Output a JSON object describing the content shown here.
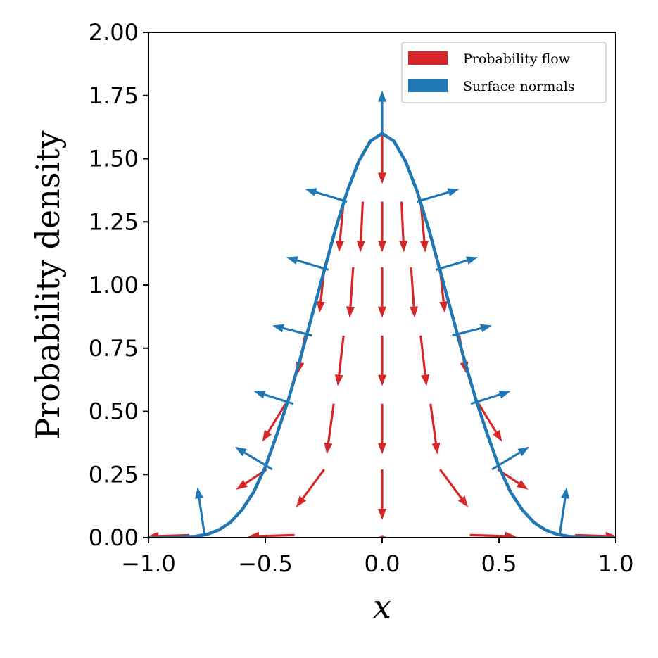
{
  "chart_data": {
    "type": "line",
    "title": "",
    "xlabel": "x",
    "ylabel": "Probability density",
    "xlim": [
      -1.0,
      1.0
    ],
    "ylim": [
      0.0,
      2.0
    ],
    "x_ticks": [
      "−1.0",
      "−0.5",
      "0.0",
      "0.5",
      "1.0"
    ],
    "x_tick_values": [
      -1.0,
      -0.5,
      0.0,
      0.5,
      1.0
    ],
    "y_ticks": [
      "0.00",
      "0.25",
      "0.50",
      "0.75",
      "1.00",
      "1.25",
      "1.50",
      "1.75",
      "2.00"
    ],
    "y_tick_values": [
      0.0,
      0.25,
      0.5,
      0.75,
      1.0,
      1.25,
      1.5,
      1.75,
      2.0
    ],
    "grid": false,
    "legend_position": "top-right",
    "legend": [
      {
        "label": "Probability flow",
        "color": "#d62728"
      },
      {
        "label": "Surface normals",
        "color": "#1f77b4"
      }
    ],
    "curve": {
      "color": "#1f77b4",
      "description_points": [
        [
          -1.0,
          0.0
        ],
        [
          -0.9,
          0.0
        ],
        [
          -0.8,
          0.005
        ],
        [
          -0.75,
          0.013
        ],
        [
          -0.7,
          0.03
        ],
        [
          -0.65,
          0.06
        ],
        [
          -0.6,
          0.11
        ],
        [
          -0.55,
          0.18
        ],
        [
          -0.5,
          0.28
        ],
        [
          -0.45,
          0.41
        ],
        [
          -0.4,
          0.55
        ],
        [
          -0.35,
          0.71
        ],
        [
          -0.3,
          0.88
        ],
        [
          -0.25,
          1.05
        ],
        [
          -0.2,
          1.22
        ],
        [
          -0.15,
          1.37
        ],
        [
          -0.1,
          1.49
        ],
        [
          -0.05,
          1.57
        ],
        [
          0.0,
          1.6
        ],
        [
          0.05,
          1.57
        ],
        [
          0.1,
          1.49
        ],
        [
          0.15,
          1.37
        ],
        [
          0.2,
          1.22
        ],
        [
          0.25,
          1.05
        ],
        [
          0.3,
          0.88
        ],
        [
          0.35,
          0.71
        ],
        [
          0.4,
          0.55
        ],
        [
          0.45,
          0.41
        ],
        [
          0.5,
          0.28
        ],
        [
          0.55,
          0.18
        ],
        [
          0.6,
          0.11
        ],
        [
          0.65,
          0.06
        ],
        [
          0.7,
          0.03
        ],
        [
          0.75,
          0.013
        ],
        [
          0.8,
          0.005
        ],
        [
          0.9,
          0.0
        ],
        [
          1.0,
          0.0
        ]
      ]
    },
    "flow_arrows": [
      {
        "x": 0.0,
        "y": 1.6,
        "dx": 0.0,
        "dy": -0.2
      },
      {
        "x": -0.165,
        "y": 1.33,
        "dx": -0.02,
        "dy": -0.2
      },
      {
        "x": -0.083,
        "y": 1.33,
        "dx": -0.01,
        "dy": -0.2
      },
      {
        "x": 0.0,
        "y": 1.33,
        "dx": 0.0,
        "dy": -0.2
      },
      {
        "x": 0.083,
        "y": 1.33,
        "dx": 0.01,
        "dy": -0.2
      },
      {
        "x": 0.165,
        "y": 1.33,
        "dx": 0.02,
        "dy": -0.2
      },
      {
        "x": -0.248,
        "y": 1.06,
        "dx": -0.02,
        "dy": -0.17
      },
      {
        "x": -0.124,
        "y": 1.07,
        "dx": -0.015,
        "dy": -0.2
      },
      {
        "x": 0.0,
        "y": 1.07,
        "dx": 0.0,
        "dy": -0.2
      },
      {
        "x": 0.124,
        "y": 1.07,
        "dx": 0.015,
        "dy": -0.2
      },
      {
        "x": 0.248,
        "y": 1.06,
        "dx": 0.02,
        "dy": -0.17
      },
      {
        "x": -0.33,
        "y": 0.8,
        "dx": -0.03,
        "dy": -0.15
      },
      {
        "x": -0.165,
        "y": 0.8,
        "dx": -0.025,
        "dy": -0.2
      },
      {
        "x": 0.0,
        "y": 0.8,
        "dx": 0.0,
        "dy": -0.2
      },
      {
        "x": 0.165,
        "y": 0.8,
        "dx": 0.025,
        "dy": -0.2
      },
      {
        "x": 0.33,
        "y": 0.8,
        "dx": 0.03,
        "dy": -0.15
      },
      {
        "x": -0.413,
        "y": 0.53,
        "dx": -0.1,
        "dy": -0.15
      },
      {
        "x": -0.207,
        "y": 0.53,
        "dx": -0.03,
        "dy": -0.2
      },
      {
        "x": 0.0,
        "y": 0.53,
        "dx": 0.0,
        "dy": -0.2
      },
      {
        "x": 0.207,
        "y": 0.53,
        "dx": 0.03,
        "dy": -0.2
      },
      {
        "x": 0.413,
        "y": 0.53,
        "dx": 0.1,
        "dy": -0.15
      },
      {
        "x": -0.495,
        "y": 0.27,
        "dx": -0.13,
        "dy": -0.08
      },
      {
        "x": -0.248,
        "y": 0.27,
        "dx": -0.12,
        "dy": -0.15
      },
      {
        "x": 0.0,
        "y": 0.27,
        "dx": 0.0,
        "dy": -0.2
      },
      {
        "x": 0.248,
        "y": 0.27,
        "dx": 0.12,
        "dy": -0.15
      },
      {
        "x": 0.495,
        "y": 0.27,
        "dx": 0.13,
        "dy": -0.08
      },
      {
        "x": -0.825,
        "y": 0.01,
        "dx": -0.18,
        "dy": -0.005
      },
      {
        "x": -0.375,
        "y": 0.01,
        "dx": -0.2,
        "dy": -0.005
      },
      {
        "x": 0.0,
        "y": 0.01,
        "dx": 0.0,
        "dy": -0.01
      },
      {
        "x": 0.375,
        "y": 0.01,
        "dx": 0.2,
        "dy": -0.005
      },
      {
        "x": 0.825,
        "y": 0.01,
        "dx": 0.18,
        "dy": -0.005
      }
    ],
    "normal_arrows": [
      {
        "x": 0.0,
        "y": 1.6,
        "dx": 0.0,
        "dy": 0.17
      },
      {
        "x": -0.15,
        "y": 1.33,
        "dx": -0.18,
        "dy": 0.05
      },
      {
        "x": 0.15,
        "y": 1.33,
        "dx": 0.18,
        "dy": 0.05
      },
      {
        "x": -0.23,
        "y": 1.06,
        "dx": -0.18,
        "dy": 0.05
      },
      {
        "x": 0.23,
        "y": 1.06,
        "dx": 0.18,
        "dy": 0.05
      },
      {
        "x": -0.3,
        "y": 0.8,
        "dx": -0.17,
        "dy": 0.04
      },
      {
        "x": 0.3,
        "y": 0.8,
        "dx": 0.17,
        "dy": 0.04
      },
      {
        "x": -0.38,
        "y": 0.53,
        "dx": -0.17,
        "dy": 0.05
      },
      {
        "x": 0.38,
        "y": 0.53,
        "dx": 0.17,
        "dy": 0.05
      },
      {
        "x": -0.47,
        "y": 0.27,
        "dx": -0.16,
        "dy": 0.09
      },
      {
        "x": 0.47,
        "y": 0.27,
        "dx": 0.16,
        "dy": 0.09
      },
      {
        "x": -0.76,
        "y": 0.01,
        "dx": -0.03,
        "dy": 0.19
      },
      {
        "x": 0.76,
        "y": 0.01,
        "dx": 0.03,
        "dy": 0.19
      }
    ]
  }
}
